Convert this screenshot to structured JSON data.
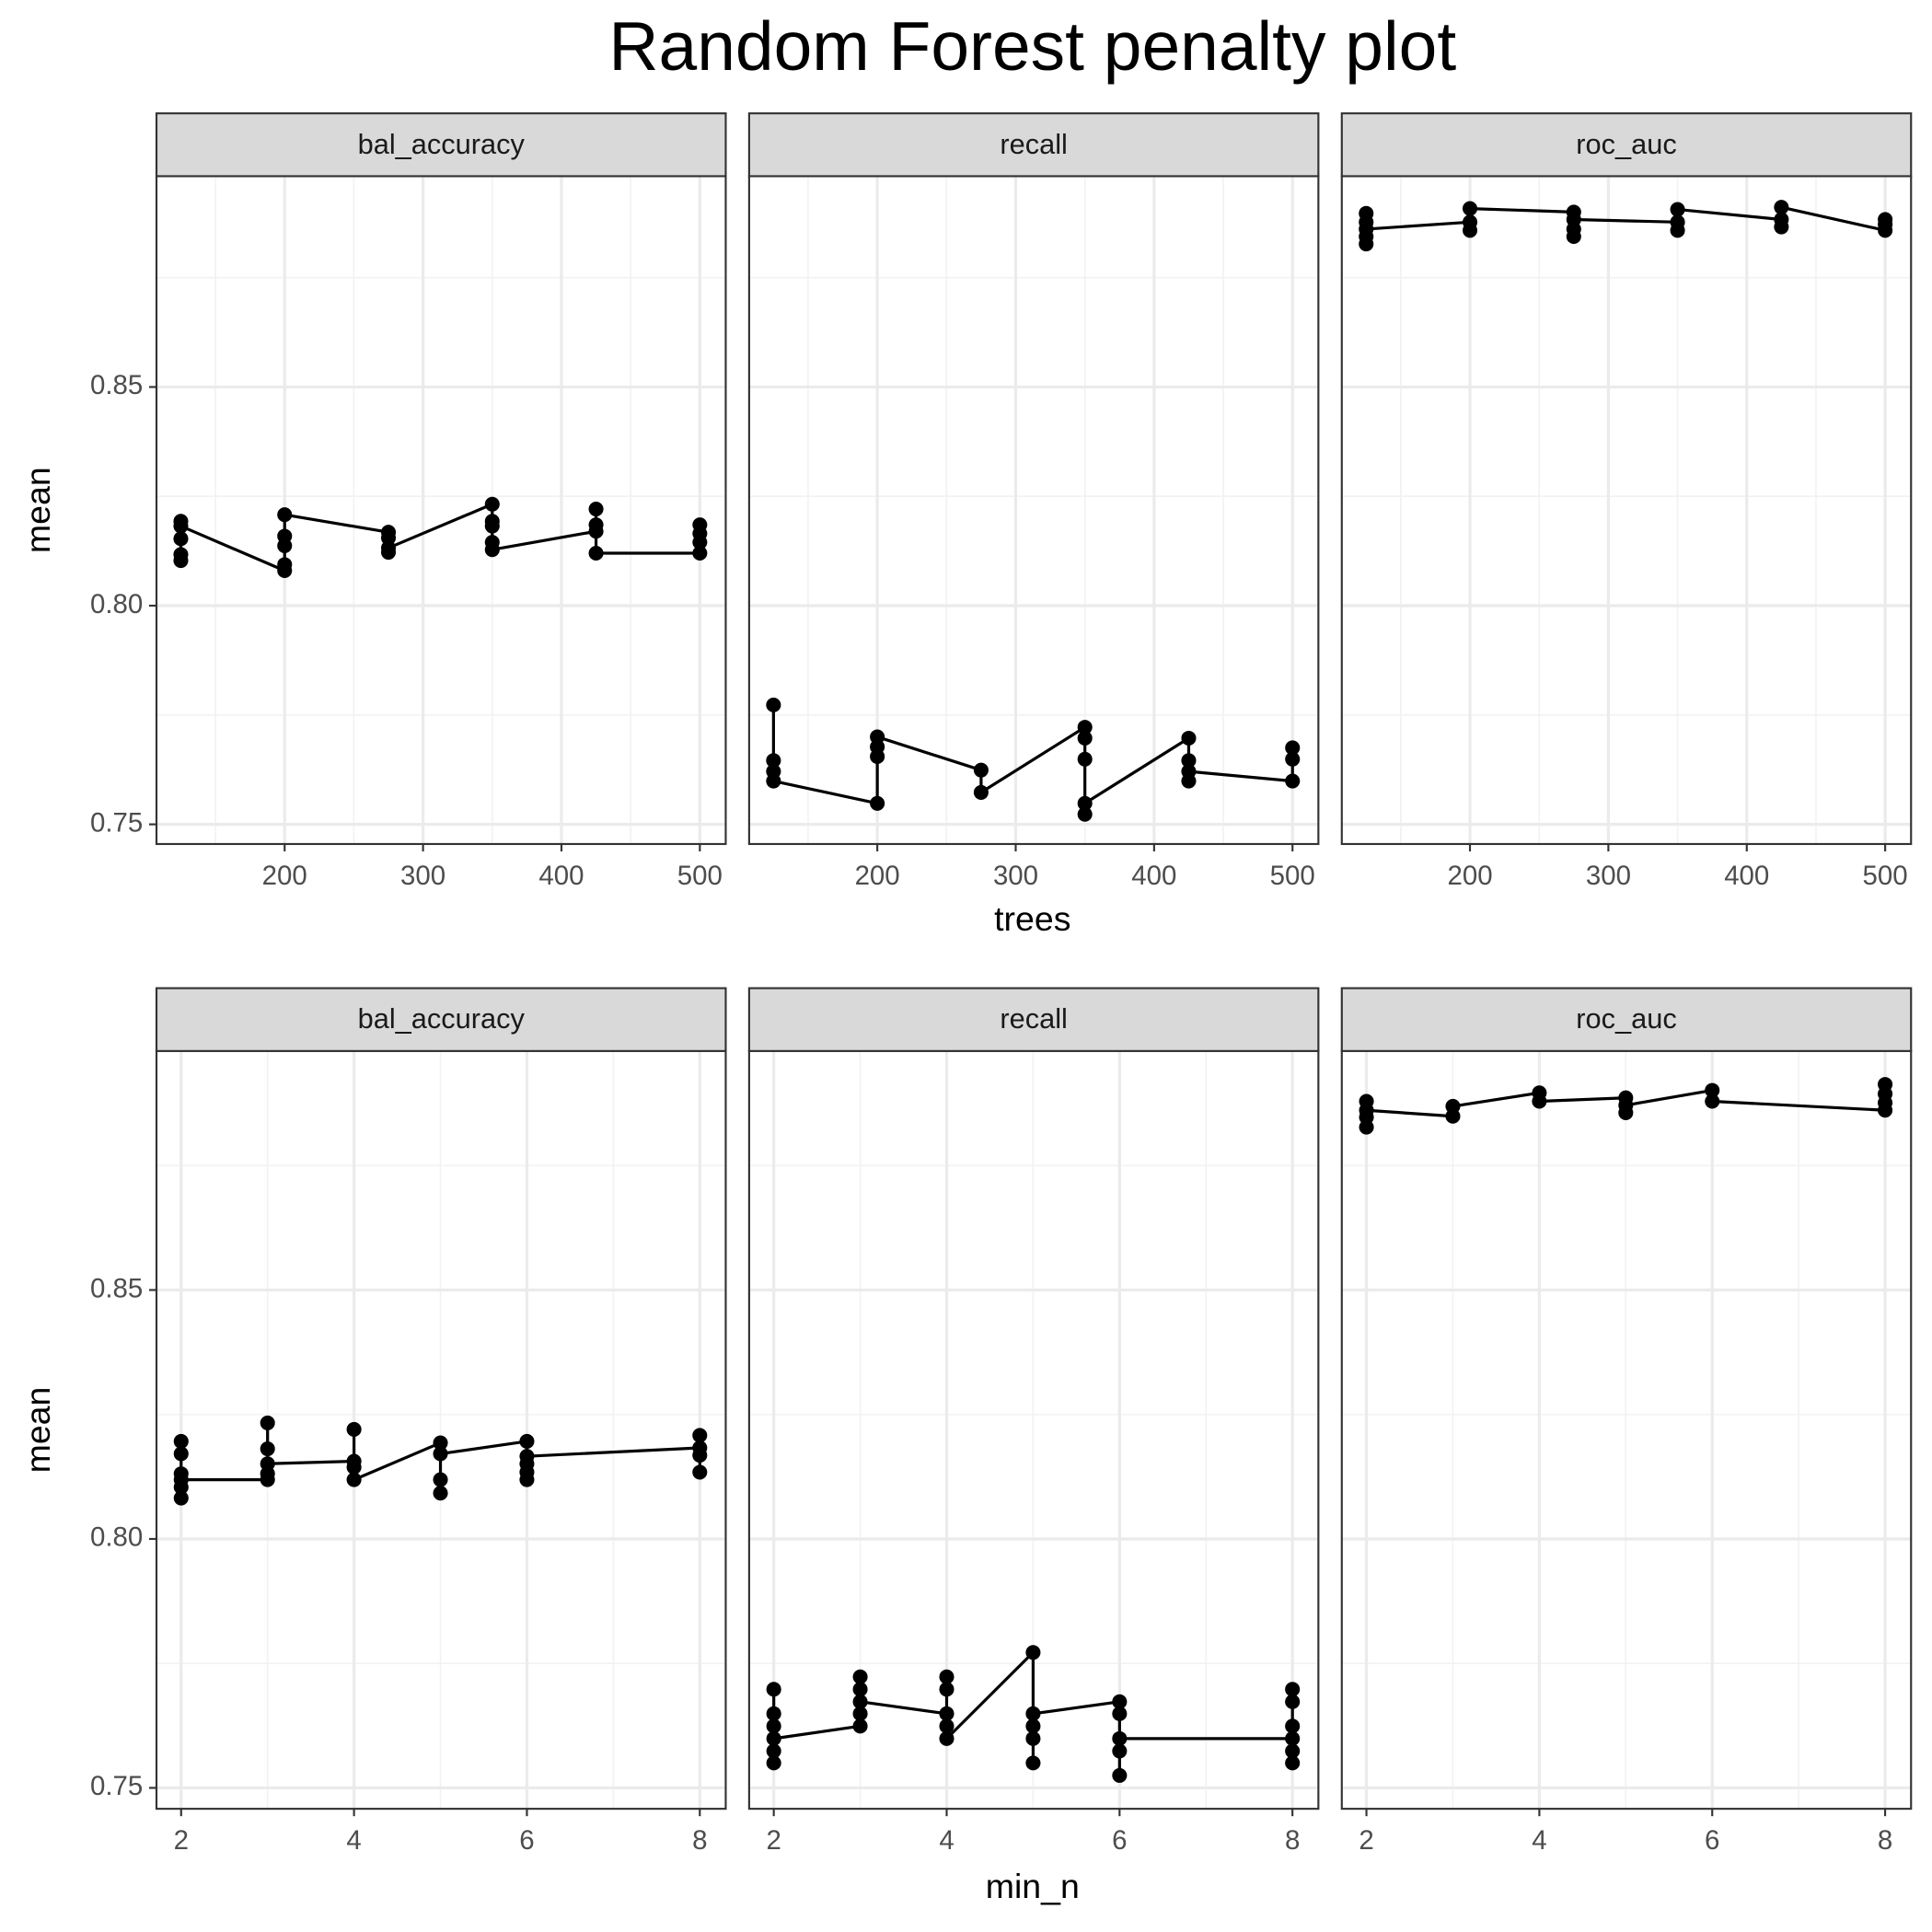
{
  "title": "Random Forest penalty plot",
  "chart_data": [
    {
      "type": "line",
      "x_label": "trees",
      "y_label": "mean",
      "color": "#000000",
      "grid": true,
      "xlim": [
        107.4,
        518.7
      ],
      "xticks": [
        200,
        300,
        400,
        500
      ],
      "xminor": [
        150,
        250,
        350,
        450
      ],
      "ylim": [
        0.7455,
        0.8982
      ],
      "yticks": [
        0.75,
        {
          "value": 0.8,
          "label": "0.80"
        },
        0.85
      ],
      "yminor": [
        0.775,
        0.825,
        0.875
      ],
      "facets": [
        {
          "title": "bal_accuracy",
          "x": [
            125,
            125,
            125,
            125,
            125,
            200,
            200,
            200,
            200,
            200,
            275,
            275,
            275,
            275,
            350,
            350,
            350,
            350,
            350,
            425,
            425,
            425,
            425,
            500,
            500,
            500,
            500
          ],
          "values": [
            0.8103,
            0.8117,
            0.8153,
            0.8193,
            0.8182,
            0.808,
            0.8094,
            0.8137,
            0.8159,
            0.8208,
            0.8168,
            0.8155,
            0.8122,
            0.8132,
            0.8232,
            0.8193,
            0.8182,
            0.8145,
            0.8128,
            0.817,
            0.8221,
            0.8185,
            0.812,
            0.812,
            0.8145,
            0.8165,
            0.8185
          ]
        },
        {
          "title": "recall",
          "x": [
            125,
            125,
            125,
            125,
            200,
            200,
            200,
            200,
            275,
            275,
            350,
            350,
            350,
            350,
            350,
            425,
            425,
            425,
            425,
            500,
            500,
            500
          ],
          "values": [
            0.7773,
            0.7646,
            0.7621,
            0.7599,
            0.7548,
            0.7655,
            0.7677,
            0.77,
            0.7624,
            0.7573,
            0.7722,
            0.7697,
            0.7649,
            0.7523,
            0.7548,
            0.7697,
            0.7646,
            0.7599,
            0.7621,
            0.7599,
            0.7649,
            0.7675
          ]
        },
        {
          "title": "roc_auc",
          "x": [
            125,
            125,
            125,
            125,
            125,
            200,
            200,
            200,
            275,
            275,
            275,
            275,
            350,
            350,
            350,
            425,
            425,
            425,
            500,
            500,
            500
          ],
          "values": [
            0.8897,
            0.8877,
            0.8844,
            0.8827,
            0.8861,
            0.8877,
            0.8858,
            0.8908,
            0.89,
            0.8861,
            0.8844,
            0.8883,
            0.8877,
            0.8858,
            0.8906,
            0.8883,
            0.8866,
            0.8911,
            0.8858,
            0.8872,
            0.8883
          ]
        }
      ]
    },
    {
      "type": "line",
      "x_label": "min_n",
      "y_label": "mean",
      "color": "#000000",
      "grid": true,
      "xlim": [
        1.715,
        8.3
      ],
      "xticks": [
        2,
        4,
        6,
        8
      ],
      "xminor": [
        3,
        5,
        7
      ],
      "ylim": [
        0.7458,
        0.898
      ],
      "yticks": [
        0.75,
        {
          "value": 0.8,
          "label": "0.80"
        },
        0.85
      ],
      "yminor": [
        0.775,
        0.825,
        0.875
      ],
      "facets": [
        {
          "title": "bal_accuracy",
          "x": [
            2,
            2,
            2,
            2,
            2,
            2,
            3,
            3,
            3,
            3,
            3,
            4,
            4,
            4,
            4,
            5,
            5,
            5,
            5,
            6,
            6,
            6,
            6,
            6,
            8,
            8,
            8,
            8
          ],
          "values": [
            0.8196,
            0.8171,
            0.8131,
            0.8104,
            0.8082,
            0.8119,
            0.8119,
            0.8131,
            0.8233,
            0.8181,
            0.8151,
            0.8156,
            0.822,
            0.8144,
            0.8119,
            0.8193,
            0.8119,
            0.8092,
            0.8171,
            0.8196,
            0.8151,
            0.8134,
            0.8119,
            0.8166,
            0.8183,
            0.8208,
            0.8168,
            0.8134
          ]
        },
        {
          "title": "recall",
          "x": [
            2,
            2,
            2,
            2,
            2,
            2,
            3,
            3,
            3,
            3,
            3,
            4,
            4,
            4,
            4,
            4,
            5,
            5,
            5,
            5,
            5,
            6,
            6,
            6,
            6,
            6,
            8,
            8,
            8,
            8,
            8,
            8
          ],
          "values": [
            0.7698,
            0.7649,
            0.7624,
            0.7574,
            0.755,
            0.7599,
            0.7624,
            0.7649,
            0.7698,
            0.7723,
            0.7673,
            0.7649,
            0.7723,
            0.7698,
            0.7624,
            0.7599,
            0.7772,
            0.755,
            0.7599,
            0.7624,
            0.7649,
            0.7673,
            0.7649,
            0.7525,
            0.7574,
            0.7599,
            0.7599,
            0.755,
            0.7574,
            0.7624,
            0.7673,
            0.7698
          ]
        },
        {
          "title": "roc_auc",
          "x": [
            2,
            2,
            2,
            2,
            3,
            3,
            4,
            4,
            5,
            5,
            5,
            6,
            6,
            8,
            8,
            8,
            8
          ],
          "values": [
            0.8879,
            0.8847,
            0.8827,
            0.8861,
            0.8849,
            0.8869,
            0.8896,
            0.8879,
            0.8886,
            0.8856,
            0.8871,
            0.8901,
            0.8879,
            0.8861,
            0.8876,
            0.8894,
            0.8913
          ]
        }
      ]
    }
  ]
}
